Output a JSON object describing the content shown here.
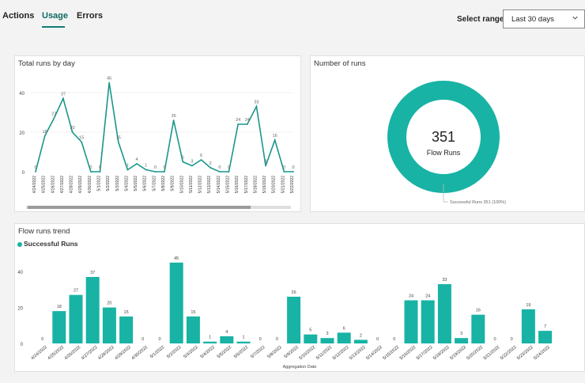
{
  "tabs": [
    {
      "label": "Actions",
      "active": false
    },
    {
      "label": "Usage",
      "active": true
    },
    {
      "label": "Errors",
      "active": false
    }
  ],
  "range": {
    "label": "Select range",
    "value": "Last 30 days"
  },
  "colors": {
    "accent": "#18b3a4",
    "line": "#1a968a",
    "tab_active": "#0f6b63"
  },
  "panels": {
    "runs_by_day": {
      "title": "Total runs by day"
    },
    "number_of_runs": {
      "title": "Number of runs",
      "total": "351",
      "total_label": "Flow Runs"
    },
    "trend": {
      "title": "Flow runs trend"
    }
  },
  "chart_data": [
    {
      "type": "line",
      "title": "Total runs by day",
      "x": [
        "4/24/2022",
        "4/25/2022",
        "4/26/2022",
        "4/27/2022",
        "4/28/2022",
        "4/29/2022",
        "4/30/2022",
        "5/1/2022",
        "5/2/2022",
        "5/3/2022",
        "5/4/2022",
        "5/5/2022",
        "5/6/2022",
        "5/7/2022",
        "5/8/2022",
        "5/9/2022",
        "5/10/2022",
        "5/11/2022",
        "5/12/2022",
        "5/13/2022",
        "5/14/2022",
        "5/15/2022",
        "5/16/2022",
        "5/17/2022",
        "5/18/2022",
        "5/19/2022",
        "5/20/2022",
        "5/21/2022",
        "5/22/2022"
      ],
      "values": [
        0,
        18,
        27,
        37,
        20,
        15,
        0,
        0,
        45,
        15,
        1,
        4,
        1,
        0,
        0,
        26,
        5,
        3,
        6,
        2,
        0,
        0,
        24,
        24,
        33,
        3,
        16,
        0,
        0
      ],
      "ylim": [
        0,
        48
      ],
      "yticks": [
        0,
        20,
        40
      ],
      "grid": true,
      "scrollbar": true
    },
    {
      "type": "pie",
      "title": "Number of runs",
      "style": "donut",
      "slices": [
        {
          "label": "Successful Runs",
          "value": 351,
          "percent": "100%"
        }
      ],
      "annotation": "Successful Runs 351 (100%)"
    },
    {
      "type": "bar",
      "title": "Flow runs trend",
      "xlabel": "Aggregation Date",
      "categories": [
        "4/24/2022",
        "4/25/2022",
        "4/26/2022",
        "4/27/2022",
        "4/28/2022",
        "4/29/2022",
        "4/30/2022",
        "5/1/2022",
        "5/2/2022",
        "5/3/2022",
        "5/4/2022",
        "5/5/2022",
        "5/6/2022",
        "5/7/2022",
        "5/8/2022",
        "5/9/2022",
        "5/10/2022",
        "5/11/2022",
        "5/12/2022",
        "5/13/2022",
        "5/14/2022",
        "5/15/2022",
        "5/16/2022",
        "5/17/2022",
        "5/18/2022",
        "5/19/2022",
        "5/20/2022",
        "5/21/2022",
        "5/22/2022",
        "5/23/2022",
        "5/24/2022"
      ],
      "series": [
        {
          "name": "Successful Runs",
          "values": [
            0,
            18,
            27,
            37,
            20,
            15,
            0,
            0,
            45,
            15,
            1,
            4,
            1,
            0,
            0,
            26,
            5,
            3,
            6,
            2,
            0,
            0,
            24,
            24,
            33,
            3,
            16,
            0,
            0,
            19,
            7
          ]
        }
      ],
      "ylim": [
        0,
        48
      ],
      "yticks": [
        0,
        20,
        40
      ],
      "legend": "top-left"
    }
  ]
}
